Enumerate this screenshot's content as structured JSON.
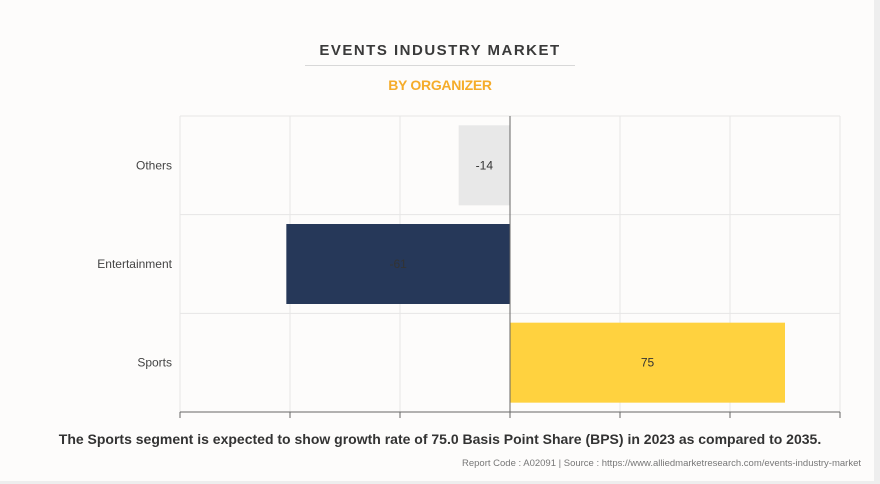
{
  "header": {
    "title": "EVENTS INDUSTRY MARKET",
    "subtitle": "BY ORGANIZER"
  },
  "chart_data": {
    "type": "bar",
    "orientation": "horizontal",
    "categories": [
      "Others",
      "Entertainment",
      "Sports"
    ],
    "values": [
      -14,
      -61,
      75
    ],
    "data_labels": [
      "-14",
      "-61",
      "75"
    ],
    "colors": [
      "#e8e8e8",
      "#263859",
      "#ffd23f"
    ],
    "xlim": [
      -90,
      90
    ],
    "x_gridline_step": 30,
    "grid": true,
    "title": "EVENTS INDUSTRY MARKET",
    "subtitle": "BY ORGANIZER",
    "xlabel": "",
    "ylabel": ""
  },
  "footer": {
    "caption": "The Sports segment is expected to show growth rate of 75.0 Basis Point Share (BPS) in 2023 as compared to 2035.",
    "source": "Report Code : A02091  |  Source : https://www.alliedmarketresearch.com/events-industry-market"
  }
}
